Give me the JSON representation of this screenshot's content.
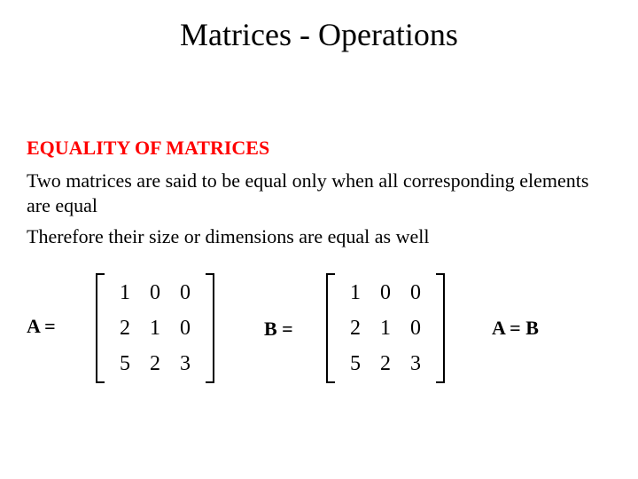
{
  "colors": {
    "background": "#ffffff",
    "text": "#000000",
    "accent": "#ff0000"
  },
  "fonts": {
    "family": "Times New Roman",
    "title_size_pt": 36,
    "subheading_size_pt": 22,
    "body_size_pt": 22,
    "matrix_size_pt": 24
  },
  "title": "Matrices - Operations",
  "subheading": "EQUALITY OF MATRICES",
  "body1": "Two matrices are said to be equal only when all corresponding elements are equal",
  "body2": "Therefore their size or dimensions are equal as well",
  "labels": {
    "a": "A = ",
    "b": "B =",
    "eq": "A = B"
  },
  "matrixA": {
    "type": "matrix",
    "rows": 3,
    "cols": 3,
    "cells": [
      "1",
      "0",
      "0",
      "2",
      "1",
      "0",
      "5",
      "2",
      "3"
    ],
    "bracket_color": "#000000"
  },
  "matrixB": {
    "type": "matrix",
    "rows": 3,
    "cols": 3,
    "cells": [
      "1",
      "0",
      "0",
      "2",
      "1",
      "0",
      "5",
      "2",
      "3"
    ],
    "bracket_color": "#000000"
  }
}
